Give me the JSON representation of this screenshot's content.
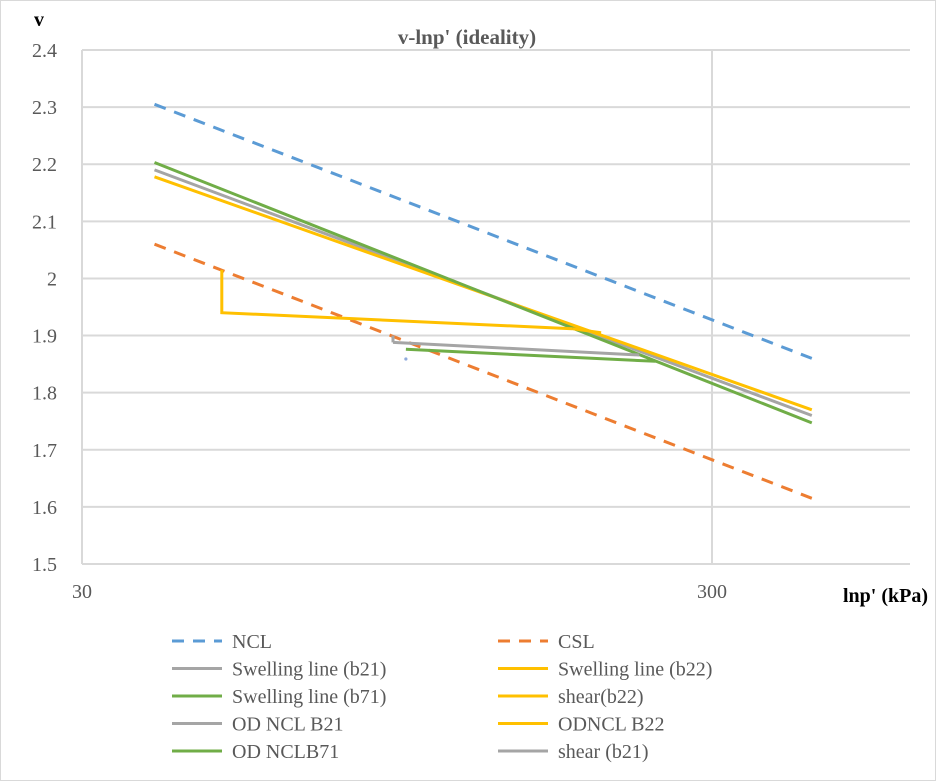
{
  "chart_data": {
    "type": "line",
    "title": "v-lnp' (ideality)",
    "xlabel": "lnp' (kPa)",
    "ylabel": "v",
    "xscale": "log",
    "xlim": [
      30,
      620
    ],
    "ylim": [
      1.5,
      2.4
    ],
    "xticks": [
      30,
      300
    ],
    "yticks": [
      "1.5",
      "1.6",
      "1.7",
      "1.8",
      "1.9",
      "2",
      "2.1",
      "2.2",
      "2.3",
      "2.4"
    ],
    "grid": true,
    "legend_position": "bottom",
    "series": [
      {
        "name": "NCL",
        "color": "#5b9bd5",
        "dash": true,
        "points": [
          [
            39.1,
            2.305
          ],
          [
            432,
            1.86
          ]
        ]
      },
      {
        "name": "CSL",
        "color": "#ed7d31",
        "dash": true,
        "points": [
          [
            39.1,
            2.06
          ],
          [
            432,
            1.615
          ]
        ]
      },
      {
        "name": "Swelling line (b21)",
        "color": "#a5a5a5",
        "dash": false,
        "points": [
          [
            39.1,
            2.19
          ],
          [
            432,
            1.76
          ]
        ]
      },
      {
        "name": "Swelling line (b22)",
        "color": "#ffc000",
        "dash": false,
        "points": [
          [
            39.1,
            2.178
          ],
          [
            432,
            1.77
          ]
        ]
      },
      {
        "name": "Swelling line (b71)",
        "color": "#70ad47",
        "dash": false,
        "points": [
          [
            39.1,
            2.203
          ],
          [
            432,
            1.747
          ]
        ]
      },
      {
        "name": "shear(b22)",
        "color": "#ffc000",
        "dash": false,
        "points": [
          [
            50,
            2.015
          ],
          [
            50,
            1.94
          ],
          [
            180,
            1.912
          ]
        ]
      },
      {
        "name": "OD NCL B21",
        "color": "#a5a5a5",
        "dash": false,
        "points": [
          [
            93.5,
            1.888
          ],
          [
            230,
            1.866
          ]
        ]
      },
      {
        "name": "ODNCL B22",
        "color": "#ffc000",
        "dash": false,
        "points": [
          [
            180,
            1.912
          ],
          [
            200,
            1.905
          ]
        ]
      },
      {
        "name": "OD NCLB71",
        "color": "#70ad47",
        "dash": false,
        "points": [
          [
            98,
            1.876
          ],
          [
            244,
            1.855
          ]
        ]
      },
      {
        "name": "shear (b21)",
        "color": "#a5a5a5",
        "dash": false,
        "points": [
          [
            93.5,
            1.9
          ],
          [
            93.5,
            1.888
          ]
        ]
      }
    ],
    "markers": [
      {
        "color": "#8faadc",
        "point": [
          98,
          1.859
        ]
      }
    ]
  }
}
